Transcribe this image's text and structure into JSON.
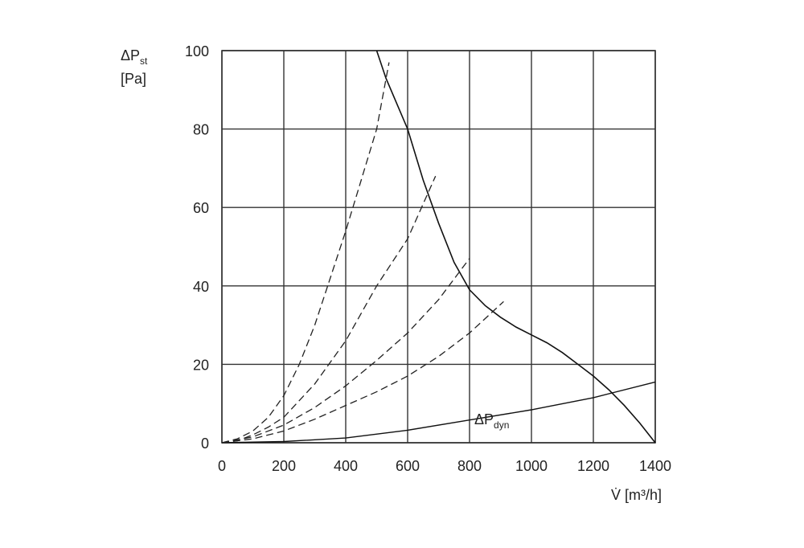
{
  "chart_data": {
    "type": "line",
    "title": "",
    "xlabel": "V̇ [m³/h]",
    "ylabel_main": "ΔP",
    "ylabel_sub": "st",
    "ylabel_unit": "[Pa]",
    "xlim": [
      0,
      1400
    ],
    "ylim": [
      0,
      100
    ],
    "x_ticks": [
      0,
      200,
      400,
      600,
      800,
      1000,
      1200,
      1400
    ],
    "x_tick_labels": [
      "0",
      "200",
      "400",
      "600",
      "800",
      "1000",
      "1200",
      "1400"
    ],
    "y_ticks": [
      0,
      20,
      40,
      60,
      80,
      100
    ],
    "y_tick_labels": [
      "0",
      "20",
      "40",
      "60",
      "80",
      "100"
    ],
    "grid": true,
    "series": [
      {
        "style": "solid",
        "points": [
          [
            500,
            100
          ],
          [
            530,
            93
          ],
          [
            600,
            80
          ],
          [
            650,
            67
          ],
          [
            700,
            56
          ],
          [
            750,
            46
          ],
          [
            800,
            39
          ],
          [
            850,
            35
          ],
          [
            900,
            32
          ],
          [
            950,
            29.5
          ],
          [
            1000,
            27.5
          ],
          [
            1050,
            25.5
          ],
          [
            1100,
            23
          ],
          [
            1150,
            20
          ],
          [
            1200,
            17
          ],
          [
            1250,
            13.5
          ],
          [
            1300,
            9.5
          ],
          [
            1350,
            5
          ],
          [
            1400,
            0
          ]
        ]
      },
      {
        "style": "solid",
        "label_main": "ΔP",
        "label_sub": "dyn",
        "points": [
          [
            0,
            0
          ],
          [
            200,
            0.3
          ],
          [
            400,
            1.2
          ],
          [
            600,
            3.2
          ],
          [
            800,
            5.8
          ],
          [
            1000,
            8.4
          ],
          [
            1200,
            11.5
          ],
          [
            1400,
            15.5
          ]
        ]
      },
      {
        "style": "dashed",
        "points": [
          [
            0,
            0
          ],
          [
            50,
            1
          ],
          [
            100,
            3
          ],
          [
            150,
            6.5
          ],
          [
            200,
            12
          ],
          [
            250,
            20
          ],
          [
            300,
            30
          ],
          [
            350,
            42
          ],
          [
            400,
            54
          ],
          [
            450,
            67
          ],
          [
            500,
            80
          ],
          [
            540,
            97
          ]
        ]
      },
      {
        "style": "dashed",
        "points": [
          [
            0,
            0
          ],
          [
            50,
            0.5
          ],
          [
            100,
            2
          ],
          [
            150,
            4
          ],
          [
            200,
            6.5
          ],
          [
            300,
            15
          ],
          [
            400,
            26
          ],
          [
            500,
            40
          ],
          [
            600,
            52
          ],
          [
            690,
            68
          ]
        ]
      },
      {
        "style": "dashed",
        "points": [
          [
            0,
            0
          ],
          [
            100,
            1.5
          ],
          [
            200,
            4.5
          ],
          [
            300,
            9
          ],
          [
            400,
            14.5
          ],
          [
            500,
            21
          ],
          [
            600,
            28
          ],
          [
            700,
            36.5
          ],
          [
            800,
            47
          ]
        ]
      },
      {
        "style": "dashed",
        "points": [
          [
            0,
            0
          ],
          [
            100,
            1
          ],
          [
            200,
            3
          ],
          [
            300,
            6
          ],
          [
            400,
            9.5
          ],
          [
            500,
            13
          ],
          [
            600,
            17
          ],
          [
            700,
            22
          ],
          [
            800,
            28
          ],
          [
            910,
            36
          ]
        ]
      }
    ]
  }
}
